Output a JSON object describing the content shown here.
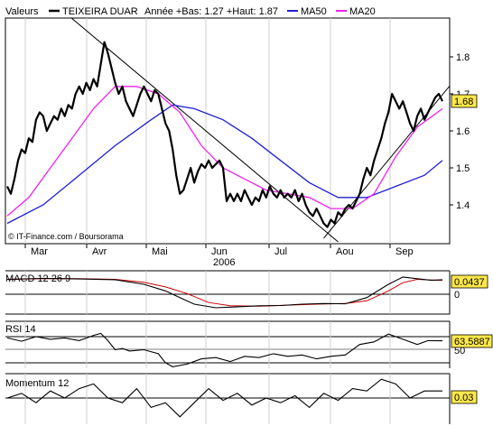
{
  "header": {
    "label": "Valeurs",
    "series_name": "TEIXEIRA DUAR",
    "range_text": "Année +Bas: 1.27 +Haut: 1.87",
    "ma50_label": "MA50",
    "ma20_label": "MA20"
  },
  "colors": {
    "price": "#000000",
    "ma50": "#1f1fd6",
    "ma20": "#ee22ee",
    "macd_signal": "#cc0000",
    "badge": "#ffe84a",
    "grid": "#cfcfcf"
  },
  "watermark": "© IT-Finance.com / Boursorama",
  "x_labels": [
    "Mar",
    "Avr",
    "Mai",
    "Jun",
    "Jul",
    "Aou",
    "Sep"
  ],
  "year_label": "2006",
  "chart_data": [
    {
      "type": "line",
      "title": "TEIXEIRA DUAR",
      "x_unit": "trading day index",
      "ylim": [
        1.3,
        1.9
      ],
      "yticks": [
        "1.4",
        "1.5",
        "1.6",
        "1.7",
        "1.8"
      ],
      "last_value": "1.68",
      "grid": true,
      "price": [
        [
          0,
          1.45
        ],
        [
          1,
          1.43
        ],
        [
          2,
          1.47
        ],
        [
          3,
          1.52
        ],
        [
          4,
          1.55
        ],
        [
          5,
          1.54
        ],
        [
          6,
          1.58
        ],
        [
          7,
          1.57
        ],
        [
          8,
          1.63
        ],
        [
          9,
          1.65
        ],
        [
          10,
          1.64
        ],
        [
          11,
          1.6
        ],
        [
          12,
          1.62
        ],
        [
          13,
          1.64
        ],
        [
          14,
          1.63
        ],
        [
          15,
          1.66
        ],
        [
          16,
          1.64
        ],
        [
          17,
          1.67
        ],
        [
          18,
          1.66
        ],
        [
          19,
          1.7
        ],
        [
          20,
          1.72
        ],
        [
          21,
          1.7
        ],
        [
          22,
          1.73
        ],
        [
          23,
          1.71
        ],
        [
          24,
          1.74
        ],
        [
          25,
          1.72
        ],
        [
          26,
          1.78
        ],
        [
          27,
          1.84
        ],
        [
          28,
          1.81
        ],
        [
          29,
          1.77
        ],
        [
          30,
          1.73
        ],
        [
          31,
          1.7
        ],
        [
          32,
          1.72
        ],
        [
          33,
          1.68
        ],
        [
          34,
          1.66
        ],
        [
          35,
          1.64
        ],
        [
          36,
          1.67
        ],
        [
          37,
          1.7
        ],
        [
          38,
          1.72
        ],
        [
          39,
          1.7
        ],
        [
          40,
          1.68
        ],
        [
          41,
          1.71
        ],
        [
          42,
          1.7
        ],
        [
          43,
          1.66
        ],
        [
          44,
          1.62
        ],
        [
          45,
          1.6
        ],
        [
          46,
          1.55
        ],
        [
          47,
          1.48
        ],
        [
          48,
          1.43
        ],
        [
          49,
          1.44
        ],
        [
          50,
          1.47
        ],
        [
          51,
          1.5
        ],
        [
          52,
          1.46
        ],
        [
          53,
          1.49
        ],
        [
          54,
          1.51
        ],
        [
          55,
          1.5
        ],
        [
          56,
          1.52
        ],
        [
          57,
          1.5
        ],
        [
          58,
          1.51
        ],
        [
          59,
          1.52
        ],
        [
          60,
          1.5
        ],
        [
          61,
          1.41
        ],
        [
          62,
          1.43
        ],
        [
          63,
          1.41
        ],
        [
          64,
          1.43
        ],
        [
          65,
          1.41
        ],
        [
          66,
          1.44
        ],
        [
          67,
          1.42
        ],
        [
          68,
          1.4
        ],
        [
          69,
          1.42
        ],
        [
          70,
          1.41
        ],
        [
          71,
          1.44
        ],
        [
          72,
          1.42
        ],
        [
          73,
          1.45
        ],
        [
          74,
          1.43
        ],
        [
          75,
          1.42
        ],
        [
          76,
          1.44
        ],
        [
          77,
          1.42
        ],
        [
          78,
          1.43
        ],
        [
          79,
          1.42
        ],
        [
          80,
          1.44
        ],
        [
          81,
          1.41
        ],
        [
          82,
          1.43
        ],
        [
          83,
          1.4
        ],
        [
          84,
          1.38
        ],
        [
          85,
          1.37
        ],
        [
          86,
          1.39
        ],
        [
          87,
          1.37
        ],
        [
          88,
          1.35
        ],
        [
          89,
          1.34
        ],
        [
          90,
          1.36
        ],
        [
          91,
          1.35
        ],
        [
          92,
          1.38
        ],
        [
          93,
          1.37
        ],
        [
          94,
          1.39
        ],
        [
          95,
          1.4
        ],
        [
          96,
          1.39
        ],
        [
          97,
          1.41
        ],
        [
          98,
          1.43
        ],
        [
          99,
          1.47
        ],
        [
          100,
          1.5
        ],
        [
          101,
          1.48
        ],
        [
          102,
          1.52
        ],
        [
          103,
          1.55
        ],
        [
          104,
          1.58
        ],
        [
          105,
          1.62
        ],
        [
          106,
          1.65
        ],
        [
          107,
          1.7
        ],
        [
          108,
          1.68
        ],
        [
          109,
          1.66
        ],
        [
          110,
          1.68
        ],
        [
          111,
          1.65
        ],
        [
          112,
          1.62
        ],
        [
          113,
          1.6
        ],
        [
          114,
          1.64
        ],
        [
          115,
          1.66
        ],
        [
          116,
          1.63
        ],
        [
          117,
          1.65
        ],
        [
          118,
          1.67
        ],
        [
          119,
          1.69
        ],
        [
          120,
          1.7
        ],
        [
          121,
          1.68
        ]
      ],
      "ma20": [
        [
          0,
          1.37
        ],
        [
          6,
          1.42
        ],
        [
          12,
          1.5
        ],
        [
          18,
          1.58
        ],
        [
          24,
          1.66
        ],
        [
          30,
          1.72
        ],
        [
          36,
          1.72
        ],
        [
          42,
          1.7
        ],
        [
          48,
          1.65
        ],
        [
          54,
          1.56
        ],
        [
          60,
          1.5
        ],
        [
          66,
          1.47
        ],
        [
          72,
          1.44
        ],
        [
          78,
          1.43
        ],
        [
          84,
          1.42
        ],
        [
          90,
          1.39
        ],
        [
          96,
          1.39
        ],
        [
          102,
          1.43
        ],
        [
          108,
          1.53
        ],
        [
          114,
          1.61
        ],
        [
          121,
          1.66
        ]
      ],
      "ma50": [
        [
          0,
          1.35
        ],
        [
          10,
          1.4
        ],
        [
          20,
          1.48
        ],
        [
          30,
          1.56
        ],
        [
          40,
          1.63
        ],
        [
          46,
          1.67
        ],
        [
          52,
          1.66
        ],
        [
          60,
          1.63
        ],
        [
          68,
          1.58
        ],
        [
          76,
          1.52
        ],
        [
          84,
          1.46
        ],
        [
          92,
          1.42
        ],
        [
          100,
          1.42
        ],
        [
          108,
          1.45
        ],
        [
          116,
          1.48
        ],
        [
          121,
          1.52
        ]
      ],
      "trendlines": [
        {
          "from": [
            16,
            1.92
          ],
          "to": [
            92,
            1.3
          ]
        },
        {
          "from": [
            88,
            1.31
          ],
          "to": [
            128,
            1.78
          ]
        }
      ]
    },
    {
      "type": "line",
      "title": "MACD 12 26 9",
      "ylim": [
        -0.06,
        0.06
      ],
      "yticks": [
        "0"
      ],
      "last_value": "0.0437",
      "macd": [
        [
          0,
          0.045
        ],
        [
          10,
          0.048
        ],
        [
          20,
          0.046
        ],
        [
          30,
          0.044
        ],
        [
          38,
          0.03
        ],
        [
          44,
          0.01
        ],
        [
          48,
          -0.01
        ],
        [
          52,
          -0.03
        ],
        [
          58,
          -0.041
        ],
        [
          64,
          -0.038
        ],
        [
          70,
          -0.035
        ],
        [
          76,
          -0.034
        ],
        [
          82,
          -0.03
        ],
        [
          88,
          -0.028
        ],
        [
          94,
          -0.029
        ],
        [
          100,
          -0.01
        ],
        [
          106,
          0.03
        ],
        [
          110,
          0.052
        ],
        [
          114,
          0.047
        ],
        [
          118,
          0.042
        ],
        [
          121,
          0.044
        ]
      ],
      "signal": [
        [
          0,
          0.045
        ],
        [
          10,
          0.047
        ],
        [
          20,
          0.047
        ],
        [
          30,
          0.045
        ],
        [
          38,
          0.036
        ],
        [
          44,
          0.022
        ],
        [
          50,
          0.002
        ],
        [
          56,
          -0.025
        ],
        [
          62,
          -0.035
        ],
        [
          70,
          -0.036
        ],
        [
          78,
          -0.033
        ],
        [
          86,
          -0.03
        ],
        [
          94,
          -0.028
        ],
        [
          100,
          -0.02
        ],
        [
          106,
          0.01
        ],
        [
          110,
          0.035
        ],
        [
          114,
          0.045
        ],
        [
          118,
          0.043
        ],
        [
          121,
          0.042
        ]
      ]
    },
    {
      "type": "line",
      "title": "RSI 14",
      "ylim": [
        20,
        80
      ],
      "yticks": [
        "50"
      ],
      "last_value": "63.5887",
      "values": [
        [
          0,
          68
        ],
        [
          4,
          63
        ],
        [
          8,
          70
        ],
        [
          12,
          66
        ],
        [
          16,
          68
        ],
        [
          20,
          64
        ],
        [
          24,
          72
        ],
        [
          26,
          75
        ],
        [
          28,
          64
        ],
        [
          30,
          50
        ],
        [
          32,
          52
        ],
        [
          34,
          48
        ],
        [
          38,
          50
        ],
        [
          42,
          44
        ],
        [
          44,
          30
        ],
        [
          46,
          24
        ],
        [
          50,
          28
        ],
        [
          54,
          36
        ],
        [
          58,
          38
        ],
        [
          62,
          32
        ],
        [
          66,
          40
        ],
        [
          70,
          38
        ],
        [
          74,
          44
        ],
        [
          78,
          40
        ],
        [
          82,
          42
        ],
        [
          86,
          36
        ],
        [
          90,
          40
        ],
        [
          94,
          42
        ],
        [
          98,
          58
        ],
        [
          102,
          62
        ],
        [
          106,
          74
        ],
        [
          110,
          66
        ],
        [
          114,
          58
        ],
        [
          117,
          64
        ],
        [
          121,
          63.59
        ]
      ]
    },
    {
      "type": "line",
      "title": "Momentum 12",
      "ylim": [
        -0.1,
        0.1
      ],
      "yticks": [],
      "last_value": "0.03",
      "values": [
        [
          0,
          0.0
        ],
        [
          4,
          0.02
        ],
        [
          8,
          -0.02
        ],
        [
          12,
          0.03
        ],
        [
          16,
          0.0
        ],
        [
          20,
          0.04
        ],
        [
          24,
          0.06
        ],
        [
          28,
          0.0
        ],
        [
          32,
          -0.02
        ],
        [
          36,
          0.04
        ],
        [
          40,
          -0.04
        ],
        [
          44,
          -0.02
        ],
        [
          48,
          -0.08
        ],
        [
          52,
          -0.02
        ],
        [
          56,
          0.04
        ],
        [
          60,
          -0.01
        ],
        [
          64,
          0.02
        ],
        [
          68,
          -0.03
        ],
        [
          72,
          0.0
        ],
        [
          76,
          -0.02
        ],
        [
          80,
          0.01
        ],
        [
          84,
          -0.04
        ],
        [
          88,
          0.02
        ],
        [
          92,
          -0.01
        ],
        [
          96,
          0.04
        ],
        [
          100,
          0.03
        ],
        [
          104,
          0.08
        ],
        [
          108,
          0.06
        ],
        [
          112,
          0.0
        ],
        [
          116,
          0.03
        ],
        [
          121,
          0.03
        ]
      ]
    }
  ]
}
